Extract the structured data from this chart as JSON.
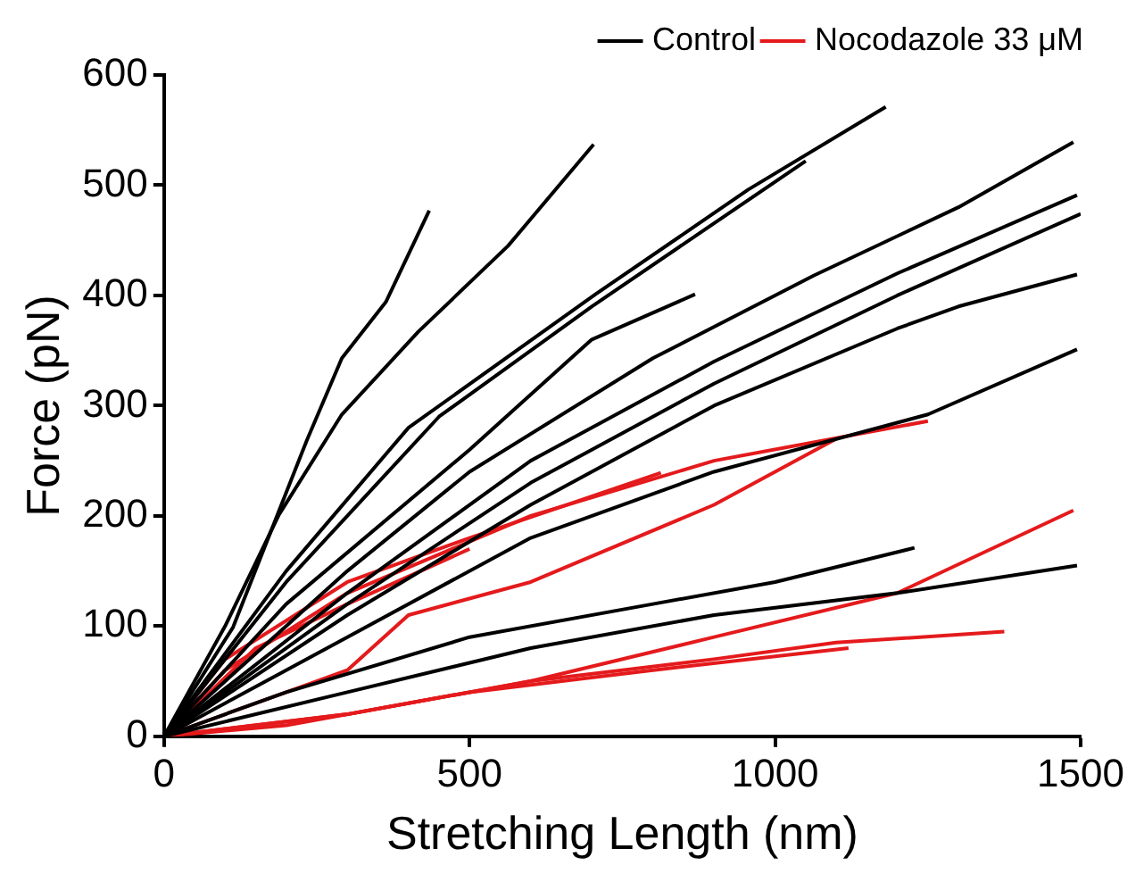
{
  "chart_data": {
    "type": "line",
    "xlabel": "Stretching Length (nm)",
    "ylabel": "Force (pN)",
    "xlim": [
      0,
      1500
    ],
    "ylim": [
      0,
      600
    ],
    "xticks": [
      0,
      500,
      1000,
      1500
    ],
    "yticks": [
      0,
      100,
      200,
      300,
      400,
      500,
      600
    ],
    "grid": false,
    "legend": "top right",
    "marker": "none",
    "line_style": "solid",
    "series": [
      {
        "name": "Control",
        "color": "#000000",
        "x": [
          0,
          113,
          234,
          291,
          363,
          434
        ],
        "values": [
          0,
          99,
          269,
          343,
          394,
          477
        ]
      },
      {
        "color": "#000000",
        "x": [
          0,
          100,
          188,
          291,
          416,
          563,
          703
        ],
        "values": [
          0,
          100,
          201,
          292,
          367,
          445,
          537
        ]
      },
      {
        "color": "#000000",
        "x": [
          0,
          200,
          400,
          706,
          956,
          1181
        ],
        "values": [
          0,
          150,
          280,
          401,
          496,
          571
        ]
      },
      {
        "color": "#000000",
        "x": [
          0,
          200,
          450,
          700,
          1050
        ],
        "values": [
          0,
          140,
          290,
          390,
          522
        ]
      },
      {
        "color": "#000000",
        "x": [
          0,
          200,
          500,
          700,
          869
        ],
        "values": [
          0,
          120,
          260,
          360,
          401
        ]
      },
      {
        "color": "#000000",
        "x": [
          0,
          300,
          500,
          800,
          1063,
          1300,
          1488
        ],
        "values": [
          0,
          150,
          240,
          343,
          418,
          480,
          539
        ]
      },
      {
        "color": "#000000",
        "x": [
          0,
          300,
          600,
          900,
          1200,
          1494
        ],
        "values": [
          0,
          130,
          250,
          340,
          420,
          491
        ]
      },
      {
        "color": "#000000",
        "x": [
          0,
          300,
          600,
          900,
          1200,
          1500
        ],
        "values": [
          0,
          120,
          230,
          320,
          400,
          474
        ]
      },
      {
        "color": "#000000",
        "x": [
          0,
          300,
          600,
          900,
          1200,
          1300,
          1494
        ],
        "values": [
          0,
          110,
          210,
          300,
          370,
          390,
          419
        ]
      },
      {
        "color": "#000000",
        "x": [
          0,
          300,
          600,
          900,
          1250,
          1494
        ],
        "values": [
          0,
          90,
          180,
          240,
          292,
          351
        ]
      },
      {
        "color": "#000000",
        "x": [
          0,
          200,
          500,
          800,
          1000,
          1228
        ],
        "values": [
          0,
          40,
          90,
          120,
          140,
          171
        ]
      },
      {
        "color": "#000000",
        "x": [
          0,
          300,
          600,
          900,
          1200,
          1494
        ],
        "values": [
          0,
          40,
          80,
          110,
          130,
          155
        ]
      },
      {
        "name": "Nocodazole 33 μM",
        "color": "#e41a1c",
        "x": [
          0,
          100,
          300,
          600,
          900,
          1250
        ],
        "values": [
          0,
          60,
          130,
          200,
          250,
          286
        ]
      },
      {
        "color": "#e41a1c",
        "x": [
          0,
          100,
          300,
          500,
          813
        ],
        "values": [
          0,
          70,
          140,
          180,
          239
        ]
      },
      {
        "color": "#e41a1c",
        "x": [
          0,
          300,
          400,
          600,
          900,
          1100
        ],
        "values": [
          0,
          60,
          110,
          140,
          210,
          270
        ]
      },
      {
        "color": "#e41a1c",
        "x": [
          0,
          300,
          600,
          900,
          1200,
          1488
        ],
        "values": [
          0,
          20,
          50,
          90,
          130,
          205
        ]
      },
      {
        "color": "#e41a1c",
        "x": [
          0,
          300,
          600,
          900,
          1100,
          1375
        ],
        "values": [
          0,
          20,
          50,
          70,
          85,
          95
        ]
      },
      {
        "color": "#e41a1c",
        "x": [
          0,
          200,
          500,
          800,
          1120
        ],
        "values": [
          0,
          10,
          40,
          60,
          80
        ]
      },
      {
        "color": "#e41a1c",
        "x": [
          0,
          150,
          300,
          500
        ],
        "values": [
          0,
          80,
          120,
          170
        ]
      }
    ]
  }
}
